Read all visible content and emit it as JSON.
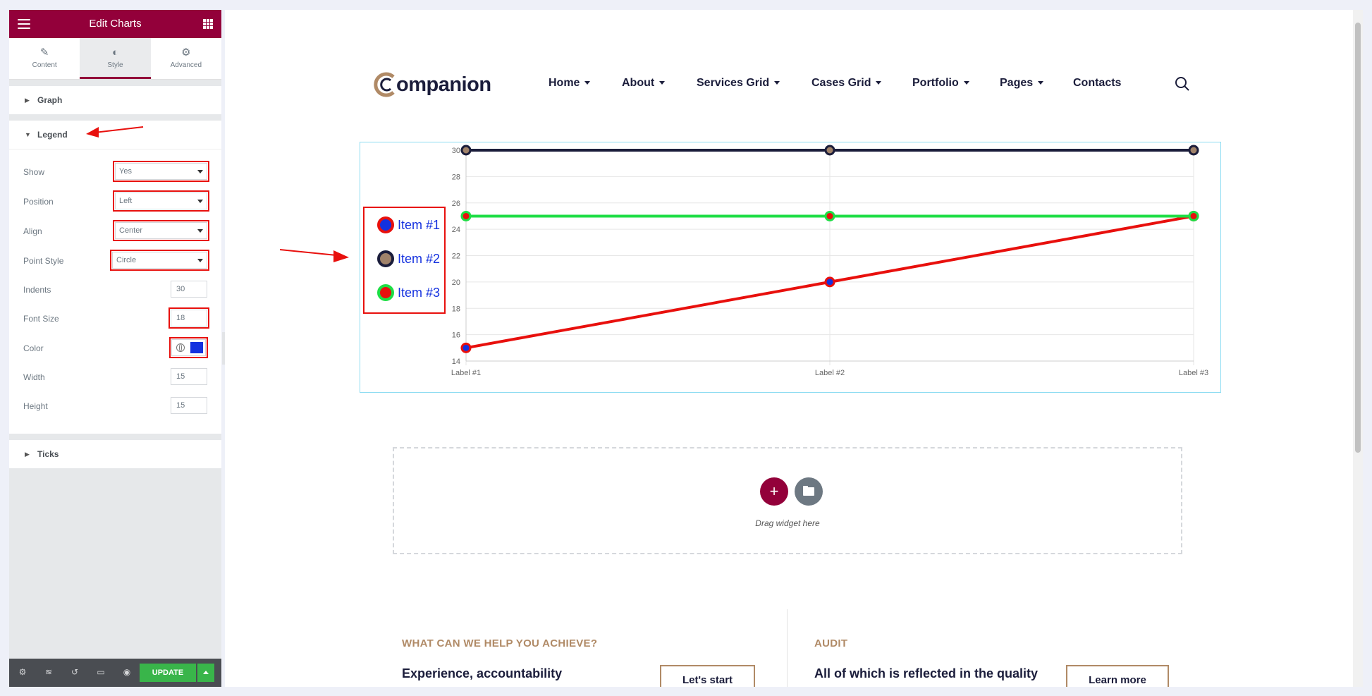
{
  "editor": {
    "title": "Edit Charts",
    "tabs": [
      {
        "label": "Content",
        "icon": "pencil-icon"
      },
      {
        "label": "Style",
        "icon": "half-circle-icon"
      },
      {
        "label": "Advanced",
        "icon": "gear-icon"
      }
    ],
    "active_tab": "Style",
    "sections": {
      "graph": "Graph",
      "legend": "Legend",
      "ticks": "Ticks"
    },
    "legend_controls": {
      "show": {
        "label": "Show",
        "value": "Yes"
      },
      "position": {
        "label": "Position",
        "value": "Left"
      },
      "align": {
        "label": "Align",
        "value": "Center"
      },
      "point_style": {
        "label": "Point Style",
        "value": "Circle"
      },
      "indents": {
        "label": "Indents",
        "value": "30"
      },
      "font_size": {
        "label": "Font Size",
        "value": "18"
      },
      "color": {
        "label": "Color",
        "value": "#1431df"
      },
      "width": {
        "label": "Width",
        "value": "15"
      },
      "height": {
        "label": "Height",
        "value": "15"
      }
    },
    "footer": {
      "update_label": "UPDATE"
    }
  },
  "site": {
    "logo_text": "ompanion",
    "nav": [
      "Home",
      "About",
      "Services Grid",
      "Cases Grid",
      "Portfolio",
      "Pages",
      "Contacts"
    ],
    "nav_has_dropdown": [
      true,
      true,
      true,
      true,
      true,
      true,
      false
    ]
  },
  "chart_data": {
    "type": "line",
    "categories": [
      "Label #1",
      "Label #2",
      "Label #3"
    ],
    "ylim": [
      14,
      30
    ],
    "yticks": [
      "30",
      "28",
      "26",
      "24",
      "22",
      "20",
      "18",
      "16",
      "14"
    ],
    "grid": true,
    "legend_position": "left",
    "series": [
      {
        "name": "Item #1",
        "values": [
          15,
          20,
          25
        ],
        "line_color": "#e8100d",
        "point_fill": "#1431df"
      },
      {
        "name": "Item #2",
        "values": [
          30,
          30,
          30
        ],
        "line_color": "#1b1d3b",
        "point_fill": "#a0826a"
      },
      {
        "name": "Item #3",
        "values": [
          25,
          25,
          25
        ],
        "line_color": "#1ede45",
        "point_fill": "#e8100d"
      }
    ]
  },
  "drop_zone": {
    "hint": "Drag widget here"
  },
  "blocks": [
    {
      "kicker": "WHAT CAN WE HELP YOU ACHIEVE?",
      "lead": "Experience, accountability",
      "button": "Let's start"
    },
    {
      "kicker": "AUDIT",
      "lead": "All of which is reflected in the quality",
      "button": "Learn more"
    }
  ]
}
